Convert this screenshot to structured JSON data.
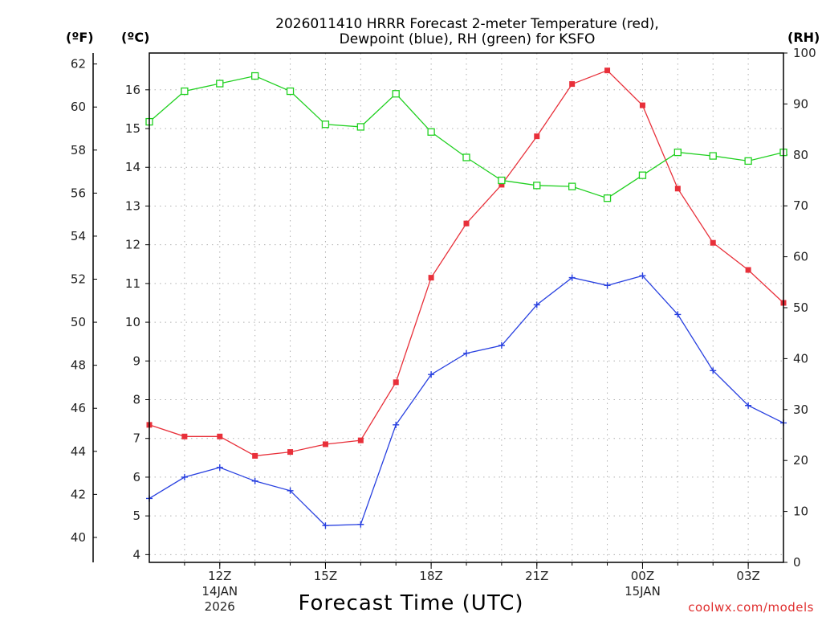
{
  "chart_data": {
    "type": "line",
    "title": [
      "2026011410 HRRR Forecast 2-meter Temperature (red),",
      "Dewpoint (blue), RH (green) for KSFO"
    ],
    "xlabel": "Forecast Time (UTC)",
    "credit": "coolwx.com/models",
    "units": {
      "fahrenheit": "(ºF)",
      "celsius": "(ºC)",
      "rh": "(RH)"
    },
    "x": [
      10,
      11,
      12,
      13,
      14,
      15,
      16,
      17,
      18,
      19,
      20,
      21,
      22,
      23,
      24,
      25,
      26,
      27,
      28
    ],
    "xlim": [
      10,
      28
    ],
    "x_ticks": [
      {
        "value": 12,
        "label": "12Z",
        "date": "14JAN",
        "year": "2026"
      },
      {
        "value": 15,
        "label": "15Z",
        "date": "",
        "year": ""
      },
      {
        "value": 18,
        "label": "18Z",
        "date": "",
        "year": ""
      },
      {
        "value": 21,
        "label": "21Z",
        "date": "",
        "year": ""
      },
      {
        "value": 24,
        "label": "00Z",
        "date": "15JAN",
        "year": ""
      },
      {
        "value": 27,
        "label": "03Z",
        "date": "",
        "year": ""
      }
    ],
    "celsius_axis": {
      "range": [
        3.8,
        16.95
      ],
      "ticks": [
        4,
        5,
        6,
        7,
        8,
        9,
        10,
        11,
        12,
        13,
        14,
        15,
        16
      ]
    },
    "fahrenheit_axis": {
      "ticks": [
        40,
        42,
        44,
        46,
        48,
        50,
        52,
        54,
        56,
        58,
        60,
        62
      ]
    },
    "rh_axis": {
      "range": [
        0,
        100
      ],
      "ticks": [
        0,
        10,
        20,
        30,
        40,
        50,
        60,
        70,
        80,
        90,
        100
      ]
    },
    "series": [
      {
        "name": "Temperature",
        "axis": "celsius",
        "color": "#e8303a",
        "marker": "filled-square",
        "values": [
          7.35,
          7.05,
          7.05,
          6.55,
          6.65,
          6.85,
          6.95,
          8.45,
          11.15,
          12.55,
          13.55,
          14.8,
          16.15,
          16.5,
          15.6,
          13.45,
          12.05,
          11.35,
          10.5
        ]
      },
      {
        "name": "Dewpoint",
        "axis": "celsius",
        "color": "#2840e0",
        "marker": "plus",
        "values": [
          5.45,
          6.0,
          6.25,
          5.9,
          5.65,
          4.75,
          4.78,
          7.35,
          8.65,
          9.2,
          9.4,
          10.45,
          11.15,
          10.95,
          11.2,
          10.2,
          8.75,
          7.85,
          7.4
        ]
      },
      {
        "name": "RH",
        "axis": "rh",
        "color": "#20d020",
        "marker": "open-square",
        "values": [
          86.5,
          92.5,
          94.0,
          95.5,
          92.5,
          86.0,
          85.5,
          92.0,
          84.5,
          79.5,
          75.0,
          74.0,
          73.8,
          71.5,
          76.0,
          80.5,
          79.8,
          78.8,
          80.5
        ]
      }
    ]
  }
}
